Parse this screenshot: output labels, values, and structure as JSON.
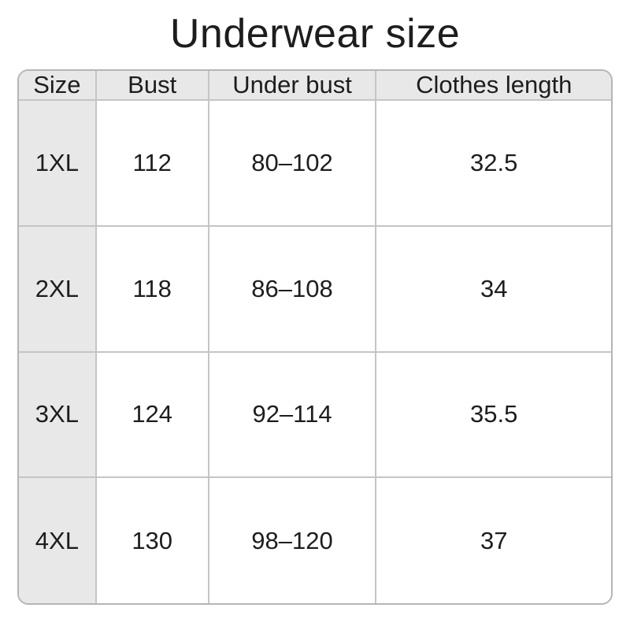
{
  "title": "Underwear size",
  "chart_data": {
    "type": "table",
    "title": "Underwear size",
    "columns": [
      "Size",
      "Bust",
      "Under bust",
      "Clothes length"
    ],
    "rows": [
      [
        "1XL",
        "112",
        "80–102",
        "32.5"
      ],
      [
        "2XL",
        "118",
        "86–108",
        "34"
      ],
      [
        "3XL",
        "124",
        "92–114",
        "35.5"
      ],
      [
        "4XL",
        "130",
        "98–120",
        "37"
      ]
    ]
  },
  "colors": {
    "header_bg": "#e8e8e8",
    "cell_bg": "#ffffff",
    "grid_border": "#c5c5c5",
    "outer_border": "#b5b5b5",
    "text": "#1d1d1d",
    "page_bg": "#ffffff"
  }
}
